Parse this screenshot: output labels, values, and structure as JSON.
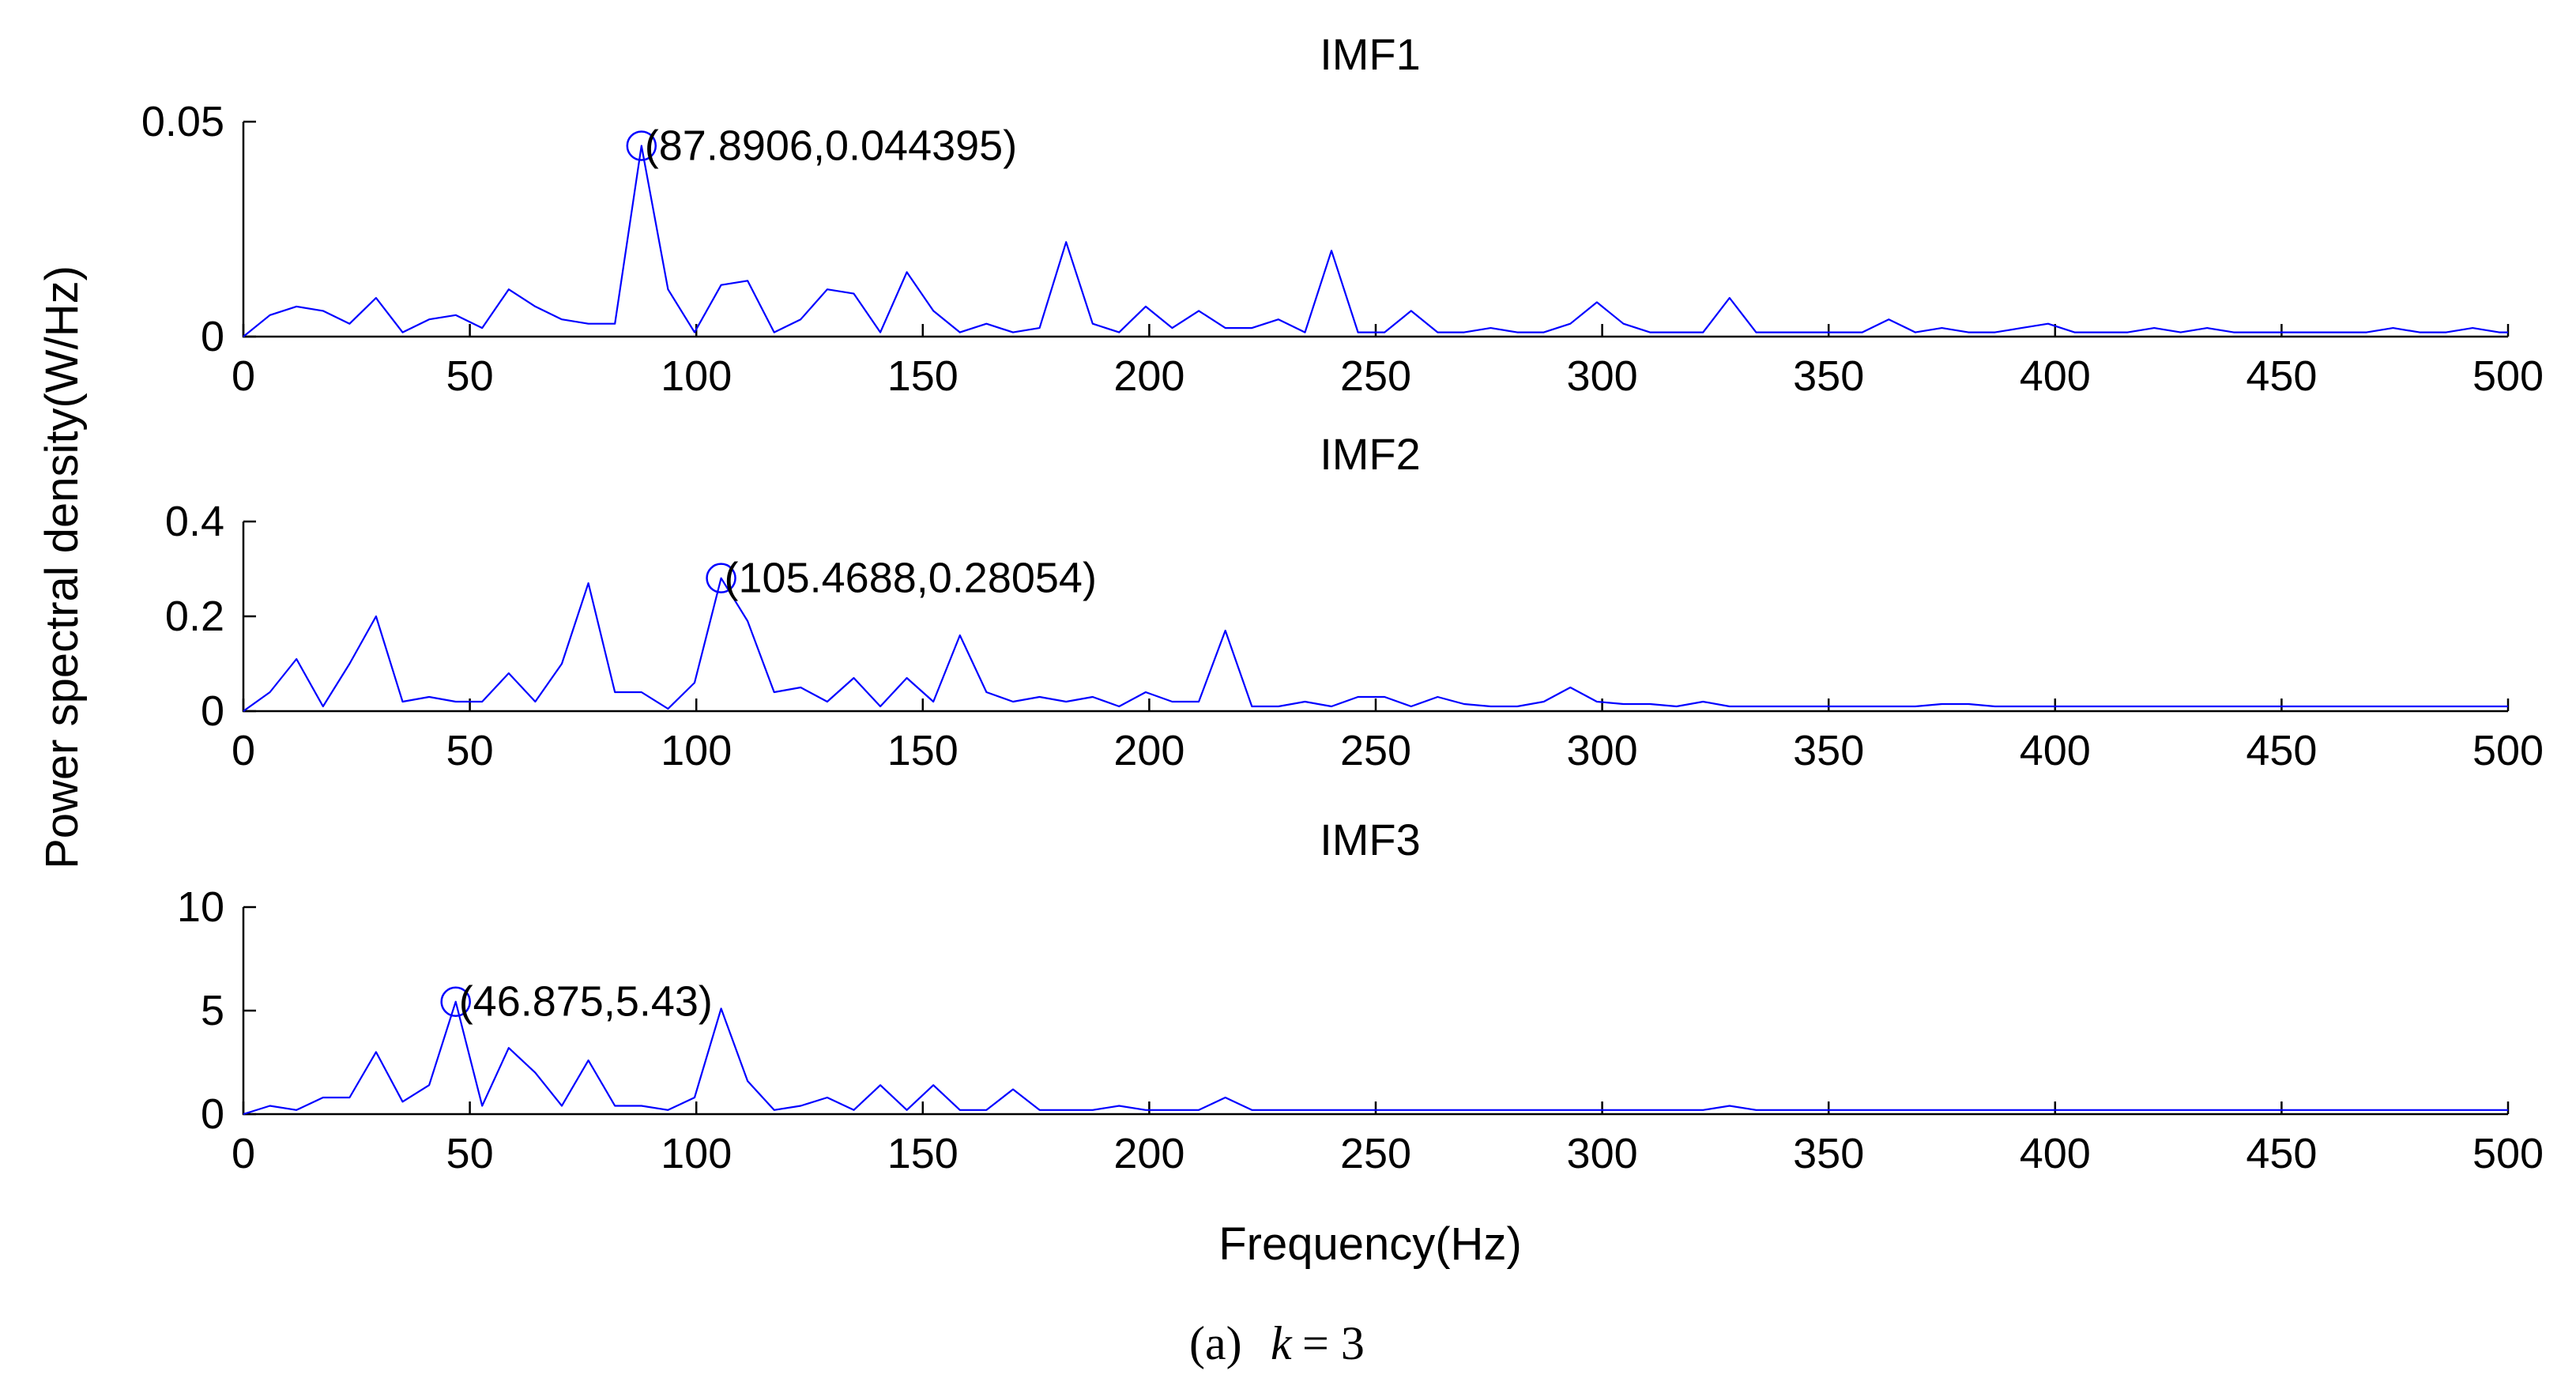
{
  "figure": {
    "ylabel": "Power spectral density(W/Hz)",
    "xlabel": "Frequency(Hz)",
    "caption": {
      "prefix": "(a)",
      "variable": "k",
      "equals": "= 3"
    }
  },
  "colors": {
    "series": "#0000ff",
    "marker": "#0000ff",
    "axes": "#000000"
  },
  "chart_data": [
    {
      "type": "line",
      "title": "IMF1",
      "xlim": [
        0,
        500
      ],
      "ylim": [
        0,
        0.05
      ],
      "xticks": [
        0,
        50,
        100,
        150,
        200,
        250,
        300,
        350,
        400,
        450,
        500
      ],
      "yticks": [
        0,
        0.05
      ],
      "ytick_labels": [
        "0",
        "0.05"
      ],
      "series": [
        {
          "x": [
            0,
            5.86,
            11.72,
            17.58,
            23.44,
            29.3,
            35.16,
            41.02,
            46.88,
            52.73,
            58.59,
            64.45,
            70.31,
            76.17,
            82.03,
            87.89,
            93.75,
            99.61,
            105.47,
            111.33,
            117.19,
            123.05,
            128.91,
            134.77,
            140.63,
            146.48,
            152.34,
            158.2,
            164.06,
            169.92,
            175.78,
            181.64,
            187.5,
            193.36,
            199.22,
            205.08,
            210.94,
            216.8,
            222.66,
            228.52,
            234.38,
            240.23,
            246.09,
            251.95,
            257.81,
            263.67,
            269.53,
            275.39,
            281.25,
            287.11,
            292.97,
            298.83,
            304.69,
            310.55,
            316.41,
            322.27,
            328.13,
            333.98,
            339.84,
            345.7,
            351.56,
            357.42,
            363.28,
            369.14,
            375,
            380.86,
            386.72,
            392.58,
            398.44,
            404.3,
            410.16,
            416.02,
            421.88,
            427.73,
            433.59,
            439.45,
            445.31,
            451.17,
            457.03,
            462.89,
            468.75,
            474.61,
            480.47,
            486.33,
            492.19,
            498.05,
            500
          ],
          "y": [
            0,
            0.005,
            0.007,
            0.006,
            0.003,
            0.009,
            0.001,
            0.004,
            0.005,
            0.002,
            0.011,
            0.007,
            0.004,
            0.003,
            0.003,
            0.044395,
            0.011,
            0.001,
            0.012,
            0.013,
            0.001,
            0.004,
            0.011,
            0.01,
            0.001,
            0.015,
            0.006,
            0.001,
            0.003,
            0.001,
            0.002,
            0.022,
            0.003,
            0.001,
            0.007,
            0.002,
            0.006,
            0.002,
            0.002,
            0.004,
            0.001,
            0.02,
            0.001,
            0.001,
            0.006,
            0.001,
            0.001,
            0.002,
            0.001,
            0.001,
            0.003,
            0.008,
            0.003,
            0.001,
            0.001,
            0.001,
            0.009,
            0.001,
            0.001,
            0.001,
            0.001,
            0.001,
            0.004,
            0.001,
            0.002,
            0.001,
            0.001,
            0.002,
            0.003,
            0.001,
            0.001,
            0.001,
            0.002,
            0.001,
            0.002,
            0.001,
            0.001,
            0.001,
            0.001,
            0.001,
            0.001,
            0.002,
            0.001,
            0.001,
            0.002,
            0.001,
            0.001
          ]
        }
      ],
      "annotation": {
        "x": 87.8906,
        "y": 0.044395,
        "label": "(87.8906,0.044395)"
      }
    },
    {
      "type": "line",
      "title": "IMF2",
      "xlim": [
        0,
        500
      ],
      "ylim": [
        0,
        0.4
      ],
      "xticks": [
        0,
        50,
        100,
        150,
        200,
        250,
        300,
        350,
        400,
        450,
        500
      ],
      "yticks": [
        0,
        0.2,
        0.4
      ],
      "ytick_labels": [
        "0",
        "0.2",
        "0.4"
      ],
      "series": [
        {
          "x": [
            0,
            5.86,
            11.72,
            17.58,
            23.44,
            29.3,
            35.16,
            41.02,
            46.88,
            52.73,
            58.59,
            64.45,
            70.31,
            76.17,
            82.03,
            87.89,
            93.75,
            99.61,
            105.47,
            111.33,
            117.19,
            123.05,
            128.91,
            134.77,
            140.63,
            146.48,
            152.34,
            158.2,
            164.06,
            169.92,
            175.78,
            181.64,
            187.5,
            193.36,
            199.22,
            205.08,
            210.94,
            216.8,
            222.66,
            228.52,
            234.38,
            240.23,
            246.09,
            251.95,
            257.81,
            263.67,
            269.53,
            275.39,
            281.25,
            287.11,
            292.97,
            298.83,
            304.69,
            310.55,
            316.41,
            322.27,
            328.13,
            333.98,
            339.84,
            345.7,
            351.56,
            357.42,
            363.28,
            369.14,
            375,
            380.86,
            386.72,
            392.58,
            398.44,
            404.3,
            410.16,
            416.02,
            421.88,
            427.73,
            433.59,
            439.45,
            445.31,
            451.17,
            457.03,
            462.89,
            468.75,
            474.61,
            480.47,
            486.33,
            492.19,
            498.05,
            500
          ],
          "y": [
            0,
            0.04,
            0.11,
            0.01,
            0.1,
            0.2,
            0.02,
            0.03,
            0.02,
            0.02,
            0.08,
            0.02,
            0.1,
            0.27,
            0.04,
            0.04,
            0.005,
            0.06,
            0.28054,
            0.19,
            0.04,
            0.05,
            0.02,
            0.07,
            0.01,
            0.07,
            0.02,
            0.16,
            0.04,
            0.02,
            0.03,
            0.02,
            0.03,
            0.01,
            0.04,
            0.02,
            0.02,
            0.17,
            0.01,
            0.01,
            0.02,
            0.01,
            0.03,
            0.03,
            0.01,
            0.03,
            0.015,
            0.01,
            0.01,
            0.02,
            0.05,
            0.02,
            0.015,
            0.015,
            0.01,
            0.02,
            0.01,
            0.01,
            0.01,
            0.01,
            0.01,
            0.01,
            0.01,
            0.01,
            0.015,
            0.015,
            0.01,
            0.01,
            0.01,
            0.01,
            0.01,
            0.01,
            0.01,
            0.01,
            0.01,
            0.01,
            0.01,
            0.01,
            0.01,
            0.01,
            0.01,
            0.01,
            0.01,
            0.01,
            0.01,
            0.01,
            0.01
          ]
        }
      ],
      "annotation": {
        "x": 105.4688,
        "y": 0.28054,
        "label": "(105.4688,0.28054)"
      }
    },
    {
      "type": "line",
      "title": "IMF3",
      "xlim": [
        0,
        500
      ],
      "ylim": [
        0,
        10
      ],
      "xticks": [
        0,
        50,
        100,
        150,
        200,
        250,
        300,
        350,
        400,
        450,
        500
      ],
      "yticks": [
        0,
        5,
        10
      ],
      "ytick_labels": [
        "0",
        "5",
        "10"
      ],
      "series": [
        {
          "x": [
            0,
            5.86,
            11.72,
            17.58,
            23.44,
            29.3,
            35.16,
            41.02,
            46.88,
            52.73,
            58.59,
            64.45,
            70.31,
            76.17,
            82.03,
            87.89,
            93.75,
            99.61,
            105.47,
            111.33,
            117.19,
            123.05,
            128.91,
            134.77,
            140.63,
            146.48,
            152.34,
            158.2,
            164.06,
            169.92,
            175.78,
            181.64,
            187.5,
            193.36,
            199.22,
            205.08,
            210.94,
            216.8,
            222.66,
            228.52,
            234.38,
            240.23,
            246.09,
            251.95,
            257.81,
            263.67,
            269.53,
            275.39,
            281.25,
            287.11,
            292.97,
            298.83,
            304.69,
            310.55,
            316.41,
            322.27,
            328.13,
            333.98,
            339.84,
            345.7,
            351.56,
            357.42,
            363.28,
            369.14,
            375,
            380.86,
            386.72,
            392.58,
            398.44,
            404.3,
            410.16,
            416.02,
            421.88,
            427.73,
            433.59,
            439.45,
            445.31,
            451.17,
            457.03,
            462.89,
            468.75,
            474.61,
            480.47,
            486.33,
            492.19,
            498.05,
            500
          ],
          "y": [
            0,
            0.4,
            0.2,
            0.8,
            0.8,
            3.0,
            0.6,
            1.4,
            5.43,
            0.4,
            3.2,
            2.0,
            0.4,
            2.6,
            0.4,
            0.4,
            0.2,
            0.8,
            5.1,
            1.6,
            0.2,
            0.4,
            0.8,
            0.2,
            1.4,
            0.2,
            1.4,
            0.2,
            0.2,
            1.2,
            0.2,
            0.2,
            0.2,
            0.4,
            0.2,
            0.2,
            0.2,
            0.8,
            0.2,
            0.2,
            0.2,
            0.2,
            0.2,
            0.2,
            0.2,
            0.2,
            0.2,
            0.2,
            0.2,
            0.2,
            0.2,
            0.2,
            0.2,
            0.2,
            0.2,
            0.2,
            0.4,
            0.2,
            0.2,
            0.2,
            0.2,
            0.2,
            0.2,
            0.2,
            0.2,
            0.2,
            0.2,
            0.2,
            0.2,
            0.2,
            0.2,
            0.2,
            0.2,
            0.2,
            0.2,
            0.2,
            0.2,
            0.2,
            0.2,
            0.2,
            0.2,
            0.2,
            0.2,
            0.2,
            0.2,
            0.2,
            0.2
          ]
        }
      ],
      "annotation": {
        "x": 46.875,
        "y": 5.43,
        "label": "(46.875,5.43)"
      }
    }
  ]
}
